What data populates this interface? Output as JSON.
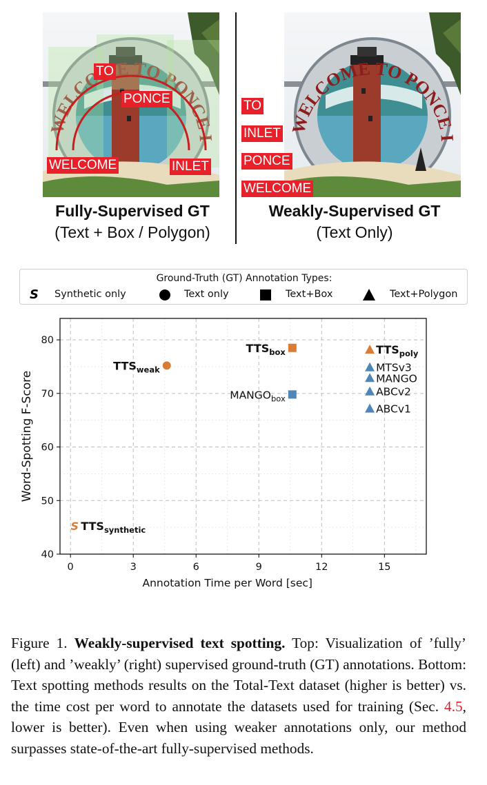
{
  "top": {
    "left": {
      "title": "Fully-Supervised GT",
      "subtitle": "(Text + Box / Polygon)",
      "photo_tags": [
        "TO",
        "PONCE",
        "WELCOME",
        "INLET"
      ],
      "photo_sign_text": [
        "WELCOME",
        "TO",
        "PONCE",
        "INLET"
      ]
    },
    "right": {
      "title": "Weakly-Supervised GT",
      "subtitle": "(Text Only)",
      "photo_tags": [
        "TO",
        "INLET",
        "PONCE",
        "WELCOME"
      ],
      "photo_sign_text": [
        "WELCOME",
        "TO",
        "PONCE",
        "INLET"
      ]
    }
  },
  "legend": {
    "title": "Ground-Truth (GT) Annotation Types:",
    "items": [
      {
        "symbol": "S",
        "label": "Synthetic only"
      },
      {
        "symbol": "circle",
        "label": "Text only"
      },
      {
        "symbol": "square",
        "label": "Text+Box"
      },
      {
        "symbol": "triangle",
        "label": "Text+Polygon"
      }
    ]
  },
  "chart_data": {
    "type": "scatter",
    "xlabel": "Annotation Time per Word [sec]",
    "ylabel": "Word-Spotting F-Score",
    "xlim": [
      -0.5,
      17
    ],
    "ylim": [
      40,
      84
    ],
    "xticks": [
      0,
      3,
      6,
      9,
      12,
      15
    ],
    "yticks": [
      40,
      50,
      60,
      70,
      80
    ],
    "grid": true,
    "colors": {
      "ours": "#d97c35",
      "others": "#4f86b8"
    },
    "points": [
      {
        "base": "TTS",
        "sub": "synthetic",
        "x": 0.2,
        "y": 45.3,
        "marker": "S",
        "group": "ours",
        "bold": true
      },
      {
        "base": "TTS",
        "sub": "weak",
        "x": 4.6,
        "y": 75.2,
        "marker": "circle",
        "group": "ours",
        "bold": true
      },
      {
        "base": "TTS",
        "sub": "box",
        "x": 10.6,
        "y": 78.5,
        "marker": "square",
        "group": "ours",
        "bold": true
      },
      {
        "base": "MANGO",
        "sub": "box",
        "x": 10.6,
        "y": 69.8,
        "marker": "square",
        "group": "others",
        "bold": false
      },
      {
        "base": "TTS",
        "sub": "poly",
        "x": 14.3,
        "y": 78.2,
        "marker": "triangle",
        "group": "ours",
        "bold": true
      },
      {
        "base": "MTSv3",
        "sub": "",
        "x": 14.3,
        "y": 74.9,
        "marker": "triangle",
        "group": "others",
        "bold": false
      },
      {
        "base": "MANGO",
        "sub": "",
        "x": 14.3,
        "y": 72.9,
        "marker": "triangle",
        "group": "others",
        "bold": false
      },
      {
        "base": "ABCv2",
        "sub": "",
        "x": 14.3,
        "y": 70.4,
        "marker": "triangle",
        "group": "others",
        "bold": false
      },
      {
        "base": "ABCv1",
        "sub": "",
        "x": 14.3,
        "y": 67.2,
        "marker": "triangle",
        "group": "others",
        "bold": false
      }
    ]
  },
  "caption": {
    "label": "Figure 1.",
    "bold": "Weakly-supervised text spotting.",
    "text_a": "Top: Visualization of ’fully’ (left) and ’weakly’ (right) supervised ground-truth (GT) annotations. Bottom: Text spotting methods results on the Total-Text dataset (higher is better) vs. the time cost per word to annotate the datasets used for training (Sec.",
    "ref": "4.5",
    "text_b": ", lower is better). Even when using weaker annotations only, our method surpasses state-of-the-art fully-supervised methods."
  }
}
